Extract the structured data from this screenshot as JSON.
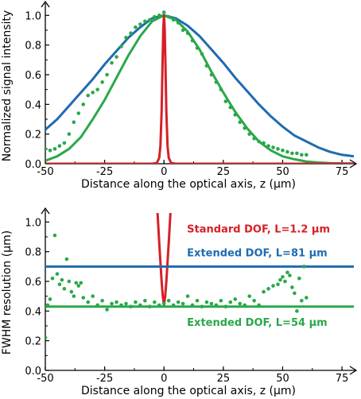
{
  "chart_data": [
    {
      "type": "line",
      "xlabel": "Distance along the optical axis, z (µm)",
      "ylabel": "Normalized signal intensity",
      "xlim": [
        -50,
        80
      ],
      "ylim": [
        0,
        1.05
      ],
      "xticks": [
        -50,
        -25,
        0,
        25,
        50,
        75
      ],
      "xtick_labels": [
        "-50",
        "-25",
        "0",
        "25",
        "50",
        "75"
      ],
      "yticks": [
        0,
        0.2,
        0.4,
        0.6,
        0.8,
        1.0
      ],
      "ytick_labels": [
        "0.0",
        "0.2",
        "0.4",
        "0.6",
        "0.8",
        "1.0"
      ],
      "series": [
        {
          "color": "#1f6bb0",
          "style": "line",
          "x": [
            -50,
            -45,
            -40,
            -35,
            -30,
            -25,
            -20,
            -15,
            -10,
            -5,
            0,
            5,
            10,
            15,
            20,
            25,
            30,
            35,
            40,
            45,
            50,
            55,
            60,
            65,
            70,
            75,
            80
          ],
          "y": [
            0.23,
            0.3,
            0.39,
            0.48,
            0.57,
            0.67,
            0.76,
            0.85,
            0.92,
            0.98,
            1.0,
            0.98,
            0.93,
            0.86,
            0.77,
            0.68,
            0.58,
            0.49,
            0.4,
            0.32,
            0.25,
            0.19,
            0.15,
            0.11,
            0.08,
            0.06,
            0.05
          ]
        },
        {
          "color": "#2aa84a",
          "style": "line",
          "x": [
            -50,
            -45,
            -40,
            -35,
            -30,
            -25,
            -20,
            -15,
            -10,
            -5,
            0,
            5,
            10,
            15,
            20,
            25,
            30,
            35,
            40,
            45,
            50,
            55,
            60,
            65,
            70,
            75,
            80
          ],
          "y": [
            0.02,
            0.05,
            0.1,
            0.18,
            0.3,
            0.43,
            0.58,
            0.73,
            0.86,
            0.96,
            1.0,
            0.97,
            0.89,
            0.77,
            0.62,
            0.48,
            0.35,
            0.24,
            0.15,
            0.09,
            0.05,
            0.03,
            0.015,
            0.008,
            0.004,
            0.002,
            0.001
          ]
        },
        {
          "color": "#2aa84a",
          "style": "points",
          "x": [
            -50,
            -48,
            -46,
            -44,
            -42,
            -40,
            -38,
            -36,
            -34,
            -32,
            -30,
            -28,
            -26,
            -24,
            -22,
            -20,
            -18,
            -16,
            -14,
            -12,
            -10,
            -8,
            -6,
            -4,
            -2,
            0,
            2,
            4,
            6,
            8,
            10,
            12,
            14,
            16,
            18,
            20,
            22,
            24,
            26,
            28,
            30,
            32,
            34,
            36,
            38,
            40,
            42,
            44,
            46,
            48,
            50,
            52,
            54,
            56,
            58,
            60
          ],
          "y": [
            0.1,
            0.09,
            0.1,
            0.12,
            0.14,
            0.2,
            0.28,
            0.34,
            0.4,
            0.46,
            0.48,
            0.5,
            0.55,
            0.6,
            0.68,
            0.72,
            0.79,
            0.85,
            0.88,
            0.92,
            0.94,
            0.96,
            0.97,
            0.99,
            1.0,
            1.02,
            0.99,
            0.97,
            0.95,
            0.9,
            0.88,
            0.83,
            0.78,
            0.74,
            0.66,
            0.6,
            0.55,
            0.5,
            0.42,
            0.38,
            0.33,
            0.28,
            0.24,
            0.2,
            0.17,
            0.15,
            0.14,
            0.12,
            0.11,
            0.1,
            0.09,
            0.08,
            0.07,
            0.07,
            0.06,
            0.06
          ]
        },
        {
          "color": "#d62027",
          "style": "line",
          "x": [
            -50,
            -5,
            -3,
            -2,
            -1.5,
            -1,
            -0.6,
            -0.3,
            0,
            0.3,
            0.6,
            1,
            1.5,
            2,
            3,
            5,
            80
          ],
          "y": [
            0,
            0,
            0.005,
            0.04,
            0.12,
            0.35,
            0.68,
            0.91,
            1.0,
            0.91,
            0.68,
            0.35,
            0.12,
            0.04,
            0.005,
            0,
            0
          ]
        }
      ]
    },
    {
      "type": "line",
      "xlabel": "Distance along the optical axis, z (µm)",
      "ylabel": "FWHM resolution (µm)",
      "xlim": [
        -50,
        80
      ],
      "ylim": [
        0,
        1.05
      ],
      "xticks": [
        -50,
        -25,
        0,
        25,
        50,
        75
      ],
      "xtick_labels": [
        "-50",
        "-25",
        "0",
        "25",
        "50",
        "75"
      ],
      "yticks": [
        0,
        0.2,
        0.4,
        0.6,
        0.8,
        1.0
      ],
      "ytick_labels": [
        "0.0",
        "0.2",
        "0.4",
        "0.6",
        "0.8",
        "1.0"
      ],
      "series": [
        {
          "name": "Standard DOF, L=1.2 µm",
          "color": "#d62027",
          "style": "line",
          "x": [
            -3,
            -2.5,
            -2,
            -1.5,
            -1,
            -0.5,
            0,
            0.5,
            1,
            1.5,
            2,
            2.5,
            3
          ],
          "y": [
            1.14,
            1.0,
            0.86,
            0.73,
            0.6,
            0.5,
            0.44,
            0.5,
            0.6,
            0.73,
            0.86,
            1.0,
            1.14
          ]
        },
        {
          "name": "Extended DOF, L=81 µm",
          "color": "#1f6bb0",
          "style": "line",
          "x": [
            -50,
            80
          ],
          "y": [
            0.7,
            0.7
          ]
        },
        {
          "name": "Extended DOF, L=54 µm",
          "color": "#2aa84a",
          "style": "line",
          "x": [
            -50,
            80
          ],
          "y": [
            0.43,
            0.43
          ]
        },
        {
          "color": "#2aa84a",
          "style": "points",
          "x": [
            -50,
            -49,
            -48,
            -47,
            -46,
            -45,
            -44,
            -43,
            -42,
            -41,
            -40,
            -39,
            -38,
            -37,
            -36,
            -35,
            -34,
            -32,
            -30,
            -28,
            -26,
            -24,
            -22,
            -20,
            -18,
            -16,
            -14,
            -12,
            -10,
            -8,
            -6,
            -4,
            -2,
            0,
            2,
            4,
            6,
            8,
            10,
            12,
            14,
            16,
            18,
            20,
            22,
            24,
            26,
            28,
            30,
            32,
            34,
            36,
            38,
            40,
            42,
            44,
            46,
            48,
            49,
            50,
            51,
            52,
            53,
            54,
            55,
            56,
            57,
            58,
            59,
            60
          ],
          "y": [
            0.22,
            0.44,
            0.48,
            0.62,
            0.91,
            0.65,
            0.58,
            0.61,
            0.55,
            0.75,
            0.6,
            0.53,
            0.5,
            0.59,
            0.57,
            0.59,
            0.49,
            0.46,
            0.5,
            0.44,
            0.47,
            0.41,
            0.45,
            0.46,
            0.44,
            0.45,
            0.43,
            0.46,
            0.44,
            0.47,
            0.43,
            0.46,
            0.44,
            0.45,
            0.47,
            0.44,
            0.46,
            0.45,
            0.5,
            0.44,
            0.47,
            0.43,
            0.46,
            0.45,
            0.44,
            0.47,
            0.43,
            0.46,
            0.48,
            0.45,
            0.44,
            0.5,
            0.47,
            0.44,
            0.53,
            0.55,
            0.57,
            0.58,
            0.61,
            0.63,
            0.6,
            0.66,
            0.64,
            0.56,
            0.52,
            0.4,
            0.62,
            0.47,
            0.7,
            0.49
          ]
        }
      ],
      "annotations": [
        {
          "text": "Standard DOF, L=1.2 µm",
          "color": "#d62027",
          "x": 3,
          "y": 0.93
        },
        {
          "text": "Extended DOF, L=81 µm",
          "color": "#1f6bb0",
          "x": 3,
          "y": 0.77
        },
        {
          "text": "Extended DOF, L=54 µm",
          "color": "#2aa84a",
          "x": 3,
          "y": 0.3
        }
      ]
    }
  ]
}
